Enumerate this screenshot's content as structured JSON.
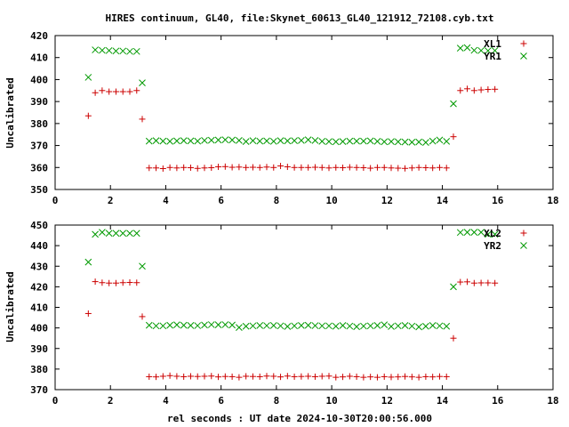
{
  "title": "HIRES continuum, GL40, file:Skynet_60613_GL40_121912_72108.cyb.txt",
  "xlabel": "rel seconds : UT date 2024-10-30T20:00:56.000",
  "colors": {
    "series_1": "#cc0000",
    "series_2": "#009900"
  },
  "chart_data": [
    {
      "type": "scatter",
      "ylabel": "Uncalibrated",
      "xlim": [
        0,
        18
      ],
      "ylim": [
        350,
        420
      ],
      "xticks": [
        "0",
        "2",
        "4",
        "6",
        "8",
        "10",
        "12",
        "14",
        "16",
        "18"
      ],
      "yticks": [
        "350",
        "360",
        "370",
        "380",
        "390",
        "400",
        "410",
        "420"
      ],
      "grid": false,
      "legend_position": "top-right",
      "series": [
        {
          "name": "XL1",
          "marker": "plus",
          "x": [
            1.2,
            1.45,
            1.7,
            1.95,
            2.2,
            2.45,
            2.7,
            2.95,
            3.15,
            3.4,
            3.65,
            3.9,
            4.15,
            4.4,
            4.65,
            4.9,
            5.15,
            5.4,
            5.65,
            5.9,
            6.15,
            6.4,
            6.65,
            6.9,
            7.15,
            7.4,
            7.65,
            7.9,
            8.15,
            8.4,
            8.65,
            8.9,
            9.15,
            9.4,
            9.65,
            9.9,
            10.15,
            10.4,
            10.65,
            10.9,
            11.15,
            11.4,
            11.65,
            11.9,
            12.15,
            12.4,
            12.65,
            12.9,
            13.15,
            13.4,
            13.65,
            13.9,
            14.15,
            14.4,
            14.65,
            14.9,
            15.15,
            15.4,
            15.65,
            15.9
          ],
          "y": [
            383.5,
            394,
            395,
            394.5,
            394.5,
            394.5,
            394.5,
            395,
            382,
            359.8,
            359.8,
            359.5,
            360.0,
            359.8,
            360.0,
            359.9,
            359.6,
            359.8,
            359.9,
            360.3,
            360.4,
            360.1,
            360.2,
            360.0,
            360.1,
            360.0,
            360.2,
            360.0,
            360.7,
            360.3,
            360.0,
            360.0,
            360.0,
            360.1,
            360.0,
            359.8,
            360.0,
            359.9,
            360.1,
            360.0,
            359.9,
            359.7,
            360.0,
            360.0,
            359.8,
            359.7,
            359.6,
            359.8,
            360.0,
            359.9,
            359.8,
            360.0,
            359.8,
            374,
            395,
            395.8,
            395,
            395.3,
            395.5,
            395.6
          ]
        },
        {
          "name": "YR1",
          "marker": "cross",
          "x": [
            1.2,
            1.45,
            1.7,
            1.95,
            2.2,
            2.45,
            2.7,
            2.95,
            3.15,
            3.4,
            3.65,
            3.9,
            4.15,
            4.4,
            4.65,
            4.9,
            5.15,
            5.4,
            5.65,
            5.9,
            6.15,
            6.4,
            6.65,
            6.9,
            7.15,
            7.4,
            7.65,
            7.9,
            8.15,
            8.4,
            8.65,
            8.9,
            9.15,
            9.4,
            9.65,
            9.9,
            10.15,
            10.4,
            10.65,
            10.9,
            11.15,
            11.4,
            11.65,
            11.9,
            12.15,
            12.4,
            12.65,
            12.9,
            13.15,
            13.4,
            13.65,
            13.9,
            14.15,
            14.4,
            14.65,
            14.9,
            15.15,
            15.4,
            15.65,
            15.9
          ],
          "y": [
            401,
            413.5,
            413.3,
            413.2,
            413,
            413,
            412.8,
            412.8,
            398.5,
            372,
            372.2,
            372.0,
            371.9,
            372.1,
            372.2,
            372.1,
            372.0,
            372.3,
            372.4,
            372.5,
            372.6,
            372.5,
            372.3,
            371.8,
            372.2,
            372.0,
            372.1,
            371.9,
            372.2,
            372.1,
            372.2,
            372.3,
            372.6,
            372.3,
            371.9,
            371.8,
            371.7,
            371.8,
            372.0,
            372.0,
            372.0,
            372.1,
            371.9,
            371.7,
            371.8,
            371.7,
            371.6,
            371.5,
            371.6,
            371.4,
            372.0,
            372.5,
            371.9,
            389,
            414.3,
            414.5,
            413.3,
            413.2,
            413.1,
            413.2
          ]
        }
      ]
    },
    {
      "type": "scatter",
      "ylabel": "Uncalibrated",
      "xlim": [
        0,
        18
      ],
      "ylim": [
        370,
        450
      ],
      "xticks": [
        "0",
        "2",
        "4",
        "6",
        "8",
        "10",
        "12",
        "14",
        "16",
        "18"
      ],
      "yticks": [
        "370",
        "380",
        "390",
        "400",
        "410",
        "420",
        "430",
        "440",
        "450"
      ],
      "grid": false,
      "legend_position": "top-right",
      "series": [
        {
          "name": "XL2",
          "marker": "plus",
          "x": [
            1.2,
            1.45,
            1.7,
            1.95,
            2.2,
            2.45,
            2.7,
            2.95,
            3.15,
            3.4,
            3.65,
            3.9,
            4.15,
            4.4,
            4.65,
            4.9,
            5.15,
            5.4,
            5.65,
            5.9,
            6.15,
            6.4,
            6.65,
            6.9,
            7.15,
            7.4,
            7.65,
            7.9,
            8.15,
            8.4,
            8.65,
            8.9,
            9.15,
            9.4,
            9.65,
            9.9,
            10.15,
            10.4,
            10.65,
            10.9,
            11.15,
            11.4,
            11.65,
            11.9,
            12.15,
            12.4,
            12.65,
            12.9,
            13.15,
            13.4,
            13.65,
            13.9,
            14.15,
            14.4,
            14.65,
            14.9,
            15.15,
            15.4,
            15.65,
            15.9
          ],
          "y": [
            407,
            422.5,
            422,
            421.8,
            421.8,
            422,
            422.1,
            422,
            405.5,
            376.3,
            376.2,
            376.5,
            376.8,
            376.5,
            376.3,
            376.5,
            376.4,
            376.5,
            376.6,
            376.2,
            376.4,
            376.3,
            376.0,
            376.5,
            376.4,
            376.3,
            376.6,
            376.5,
            376.2,
            376.6,
            376.3,
            376.4,
            376.5,
            376.3,
            376.5,
            376.6,
            376.0,
            376.2,
            376.5,
            376.3,
            376.0,
            376.2,
            376.0,
            376.3,
            376.1,
            376.2,
            376.4,
            376.2,
            376.0,
            376.3,
            376.2,
            376.4,
            376.3,
            395,
            422.3,
            422.4,
            421.8,
            421.9,
            421.9,
            421.8
          ]
        },
        {
          "name": "YR2",
          "marker": "cross",
          "x": [
            1.2,
            1.45,
            1.7,
            1.95,
            2.2,
            2.45,
            2.7,
            2.95,
            3.15,
            3.4,
            3.65,
            3.9,
            4.15,
            4.4,
            4.65,
            4.9,
            5.15,
            5.4,
            5.65,
            5.9,
            6.15,
            6.4,
            6.65,
            6.9,
            7.15,
            7.4,
            7.65,
            7.9,
            8.15,
            8.4,
            8.65,
            8.9,
            9.15,
            9.4,
            9.65,
            9.9,
            10.15,
            10.4,
            10.65,
            10.9,
            11.15,
            11.4,
            11.65,
            11.9,
            12.15,
            12.4,
            12.65,
            12.9,
            13.15,
            13.4,
            13.65,
            13.9,
            14.15,
            14.4,
            14.65,
            14.9,
            15.15,
            15.4,
            15.65,
            15.9
          ],
          "y": [
            432,
            445.5,
            446.5,
            446,
            446,
            446,
            446,
            446,
            430,
            401.3,
            401.0,
            401.0,
            401.3,
            401.5,
            401.3,
            401.2,
            401.1,
            401.4,
            401.6,
            401.5,
            401.6,
            401.4,
            400.2,
            400.8,
            401.0,
            401.2,
            401.1,
            401.2,
            401.0,
            400.7,
            401.0,
            401.2,
            401.3,
            401.1,
            401.0,
            401.0,
            400.8,
            401.2,
            400.9,
            400.6,
            400.9,
            401.0,
            401.2,
            401.5,
            400.7,
            401.0,
            401.2,
            400.9,
            400.5,
            400.8,
            401.2,
            401.0,
            400.8,
            420,
            446.4,
            446.5,
            446.5,
            446.5,
            445.5,
            445.5
          ]
        }
      ]
    }
  ]
}
